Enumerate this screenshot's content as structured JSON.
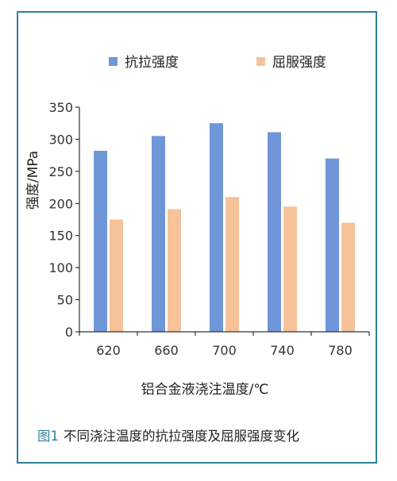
{
  "caption": {
    "figure_label": "图1",
    "text": "不同浇注温度的抗拉强度及屈服强度变化"
  },
  "colors": {
    "border": "#2f7f9a",
    "tensile": "#6f96d8",
    "yield": "#f6c29a",
    "axis": "#333333"
  },
  "chart_data": {
    "type": "bar",
    "categories": [
      "620",
      "660",
      "700",
      "740",
      "780"
    ],
    "series": [
      {
        "name": "抗拉强度",
        "values": [
          282,
          305,
          325,
          311,
          270
        ]
      },
      {
        "name": "屈服强度",
        "values": [
          175,
          191,
          210,
          195,
          170
        ]
      }
    ],
    "title": "",
    "xlabel": "铝合金液浇注温度/℃",
    "ylabel": "强度/MPa",
    "ylim": [
      0,
      350
    ],
    "yticks": [
      0,
      50,
      100,
      150,
      200,
      250,
      300,
      350
    ],
    "ytick_labels": [
      "0",
      "50",
      "100",
      "150",
      "200",
      "250",
      "300",
      "350"
    ],
    "grid": false,
    "legend": "top"
  }
}
